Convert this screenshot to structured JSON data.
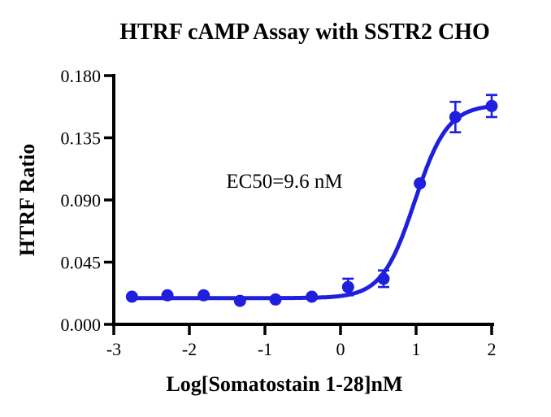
{
  "chart_data": {
    "type": "scatter",
    "title": "HTRF cAMP Assay with SSTR2 CHO",
    "xlabel": "Log[Somatostain 1-28]nM",
    "ylabel": "HTRF Ratio",
    "annotation": "EC50=9.6 nM",
    "xlim": [
      -3,
      2
    ],
    "ylim": [
      0,
      0.18
    ],
    "x_ticks": [
      "-3",
      "-2",
      "-1",
      "0",
      "1",
      "2"
    ],
    "y_ticks": [
      "0.000",
      "0.045",
      "0.090",
      "0.135",
      "0.180"
    ],
    "grid": false,
    "legend": false,
    "axis_color": "#000000",
    "series": [
      {
        "name": "Somatostain 1-28",
        "color": "#1F1FDE",
        "x": [
          -2.76,
          -2.29,
          -1.81,
          -1.33,
          -0.86,
          -0.38,
          0.1,
          0.57,
          1.05,
          1.52,
          2.0
        ],
        "y": [
          0.02,
          0.021,
          0.021,
          0.017,
          0.018,
          0.02,
          0.027,
          0.033,
          0.102,
          0.15,
          0.158
        ],
        "error": [
          0,
          0,
          0,
          0,
          0,
          0,
          0.006,
          0.006,
          0,
          0.011,
          0.008
        ]
      }
    ],
    "curve_fit": {
      "model": "4PL sigmoid",
      "bottom": 0.019,
      "top": 0.159,
      "log_ec50": 0.982,
      "hill_slope": 2.0,
      "ec50_label_nM": "9.6"
    }
  }
}
